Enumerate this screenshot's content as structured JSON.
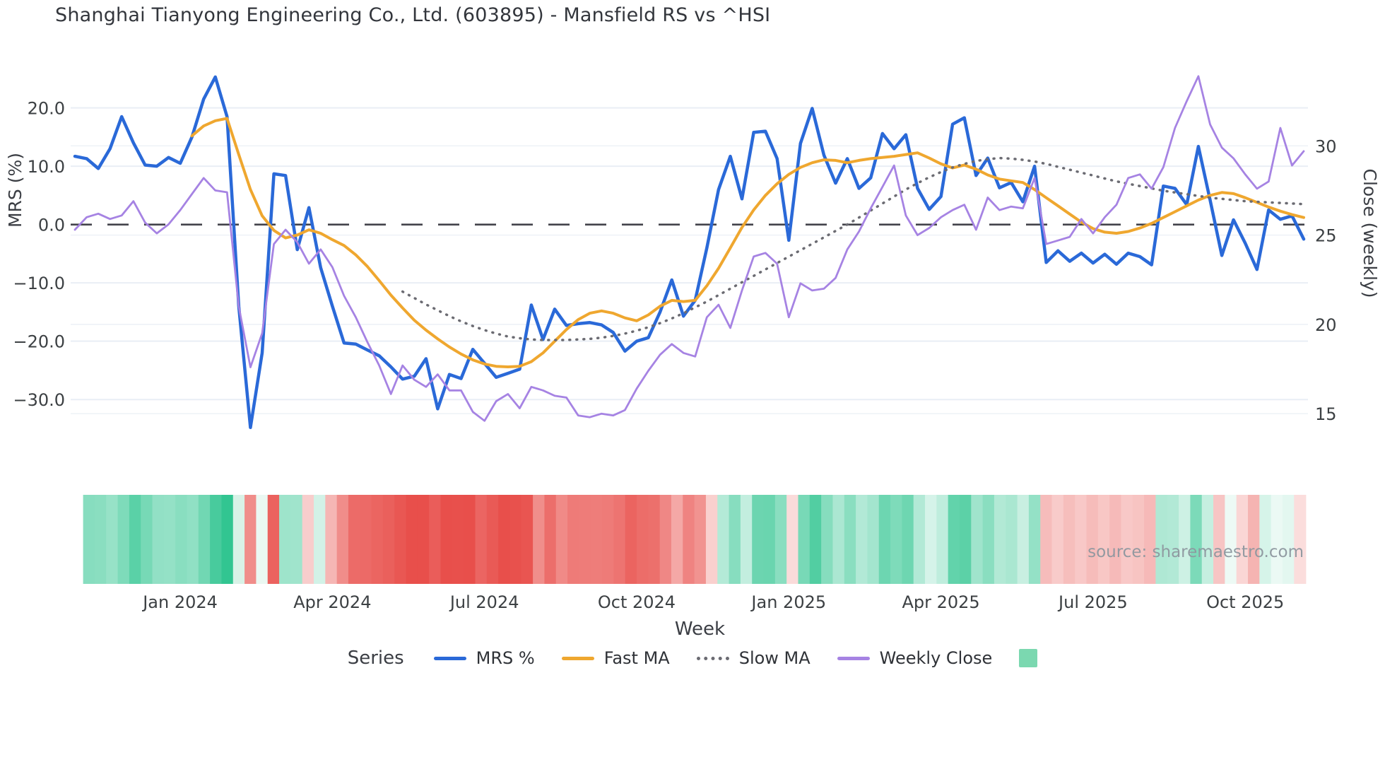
{
  "title": "Shanghai Tianyong Engineering Co., Ltd. (603895) - Mansfield RS vs ^HSI",
  "source_note": "source: sharemaestro.com",
  "legend": {
    "heading": "Series",
    "items": [
      {
        "label": "MRS %",
        "style": "line",
        "color": "#2a69d8"
      },
      {
        "label": "Fast MA",
        "style": "line",
        "color": "#efa72f"
      },
      {
        "label": "Slow MA",
        "style": "dotted",
        "color": "#6b6b72"
      },
      {
        "label": "Weekly Close",
        "style": "line",
        "color": "#a683e3"
      },
      {
        "label": "",
        "style": "square",
        "color": "#7bd8b0"
      }
    ]
  },
  "colors": {
    "grid": "#e9eef5",
    "zero_line": "#43434b",
    "tick_text": "#3c4043",
    "axis_title_text": "#3b3e44",
    "heat_pos_max": "#2ec48f",
    "heat_neg_max": "#e84f4b",
    "background": "#ffffff"
  },
  "chart_data": {
    "type": "line",
    "title": "Shanghai Tianyong Engineering Co., Ltd. (603895) - Mansfield RS vs ^HSI",
    "xlabel": "Week",
    "ylabel_left": "MRS (%)",
    "ylabel_right": "Close (weekly)",
    "n_weeks": 106,
    "x_tick_weeks": [
      9,
      22,
      35,
      48,
      61,
      74,
      87,
      100
    ],
    "x_tick_labels": [
      "Jan 2024",
      "Apr 2024",
      "Jul 2024",
      "Oct 2024",
      "Jan 2025",
      "Apr 2025",
      "Jul 2025",
      "Oct 2025"
    ],
    "left_axis": {
      "ticks": [
        20,
        10,
        0,
        -10,
        -20,
        -30
      ],
      "tick_labels": [
        "20.0",
        "10.0",
        "0.0",
        "−10.0",
        "−20.0",
        "−30.0"
      ],
      "range": [
        -36.4,
        28.8
      ],
      "zero_line": 0
    },
    "right_axis": {
      "ticks": [
        30,
        25,
        20,
        15
      ],
      "tick_labels": [
        "30",
        "25",
        "20",
        "15"
      ],
      "range": [
        13.7,
        35.0
      ]
    },
    "grid": true,
    "legend_position": "bottom",
    "series": [
      {
        "name": "MRS %",
        "axis": "left",
        "color": "#2a69d8",
        "width": 4.5,
        "dash": "solid",
        "values": [
          11.7,
          11.3,
          9.6,
          13.0,
          18.5,
          14.0,
          10.2,
          10.0,
          11.5,
          10.5,
          15.0,
          21.5,
          25.3,
          18.5,
          -14.0,
          -34.8,
          -22.0,
          8.7,
          8.4,
          -4.3,
          2.9,
          -7.4,
          -14.0,
          -20.3,
          -20.5,
          -21.5,
          -22.5,
          -24.4,
          -26.5,
          -26.0,
          -23.0,
          -31.6,
          -25.7,
          -26.4,
          -21.4,
          -23.8,
          -26.2,
          -25.5,
          -24.8,
          -13.8,
          -19.7,
          -14.5,
          -17.3,
          -17.0,
          -16.8,
          -17.2,
          -18.5,
          -21.7,
          -20.0,
          -19.4,
          -15.0,
          -9.5,
          -15.7,
          -13.0,
          -4.0,
          6.0,
          11.7,
          4.4,
          15.8,
          16.0,
          11.3,
          -2.7,
          13.9,
          19.9,
          11.9,
          7.1,
          11.3,
          6.2,
          8.0,
          15.6,
          13.0,
          15.4,
          6.2,
          2.6,
          4.8,
          17.2,
          18.3,
          8.4,
          11.4,
          6.3,
          7.2,
          3.9,
          10.0,
          -6.5,
          -4.5,
          -6.3,
          -4.9,
          -6.6,
          -5.1,
          -6.8,
          -4.9,
          -5.5,
          -6.9,
          6.6,
          6.2,
          3.4,
          13.4,
          4.2,
          -5.3,
          0.8,
          -3.2,
          -7.7,
          2.5,
          0.9,
          1.5,
          -2.5
        ]
      },
      {
        "name": "Fast MA",
        "axis": "left",
        "color": "#efa72f",
        "width": 4,
        "dash": "solid",
        "values": [
          null,
          null,
          null,
          null,
          null,
          null,
          null,
          null,
          null,
          null,
          15.2,
          16.9,
          17.8,
          18.2,
          12.0,
          6.0,
          1.5,
          -1.0,
          -2.3,
          -1.8,
          -0.9,
          -1.5,
          -2.6,
          -3.6,
          -5.2,
          -7.2,
          -9.6,
          -12.1,
          -14.3,
          -16.4,
          -18.1,
          -19.6,
          -21.0,
          -22.2,
          -23.2,
          -23.9,
          -24.3,
          -24.4,
          -24.3,
          -23.5,
          -22.0,
          -20.0,
          -18.0,
          -16.3,
          -15.2,
          -14.8,
          -15.2,
          -16.0,
          -16.5,
          -15.5,
          -14.0,
          -13.0,
          -13.2,
          -13.0,
          -10.5,
          -7.5,
          -4.0,
          -0.5,
          2.5,
          5.0,
          7.0,
          8.6,
          9.8,
          10.6,
          11.1,
          11.0,
          10.6,
          11.0,
          11.3,
          11.5,
          11.7,
          12.0,
          12.3,
          11.4,
          10.4,
          9.7,
          10.2,
          9.5,
          8.5,
          7.8,
          7.5,
          7.2,
          6.0,
          4.6,
          3.2,
          1.8,
          0.4,
          -0.7,
          -1.3,
          -1.5,
          -1.2,
          -0.6,
          0.2,
          1.2,
          2.2,
          3.2,
          4.2,
          5.0,
          5.5,
          5.3,
          4.6,
          3.8,
          3.0,
          2.3,
          1.7,
          1.2
        ]
      },
      {
        "name": "Slow MA",
        "axis": "left",
        "color": "#6b6b72",
        "width": 3.5,
        "dash": "dotted",
        "values": [
          null,
          null,
          null,
          null,
          null,
          null,
          null,
          null,
          null,
          null,
          null,
          null,
          null,
          null,
          null,
          null,
          null,
          null,
          null,
          null,
          null,
          null,
          null,
          null,
          null,
          null,
          null,
          null,
          -11.5,
          -12.6,
          -13.7,
          -14.7,
          -15.7,
          -16.6,
          -17.4,
          -18.1,
          -18.7,
          -19.2,
          -19.5,
          -19.7,
          -19.8,
          -19.8,
          -19.8,
          -19.7,
          -19.6,
          -19.4,
          -19.1,
          -18.7,
          -18.2,
          -17.6,
          -16.9,
          -16.1,
          -15.2,
          -14.2,
          -13.2,
          -12.1,
          -11.0,
          -9.9,
          -8.8,
          -7.7,
          -6.6,
          -5.5,
          -4.4,
          -3.3,
          -2.2,
          -1.1,
          0.0,
          1.2,
          2.4,
          3.6,
          4.8,
          6.0,
          7.1,
          8.1,
          9.0,
          9.8,
          10.4,
          10.9,
          11.2,
          11.4,
          11.3,
          11.1,
          10.8,
          10.4,
          9.9,
          9.4,
          8.9,
          8.4,
          7.9,
          7.4,
          7.0,
          6.6,
          6.2,
          5.8,
          5.5,
          5.2,
          4.9,
          4.6,
          4.4,
          4.2,
          4.0,
          3.9,
          3.8,
          3.7,
          3.6,
          3.5
        ]
      },
      {
        "name": "Weekly Close",
        "axis": "right",
        "color": "#a683e3",
        "width": 2.8,
        "dash": "solid",
        "values": [
          25.3,
          26.0,
          26.2,
          25.9,
          26.1,
          26.9,
          25.7,
          25.1,
          25.6,
          26.4,
          27.3,
          28.2,
          27.5,
          27.4,
          21.0,
          17.6,
          19.5,
          24.5,
          25.3,
          24.6,
          23.4,
          24.2,
          23.2,
          21.6,
          20.4,
          19.0,
          17.7,
          16.1,
          17.7,
          16.9,
          16.5,
          17.2,
          16.3,
          16.3,
          15.1,
          14.6,
          15.7,
          16.1,
          15.3,
          16.5,
          16.3,
          16.0,
          15.9,
          14.9,
          14.8,
          15.0,
          14.9,
          15.2,
          16.4,
          17.4,
          18.3,
          18.9,
          18.4,
          18.2,
          20.4,
          21.1,
          19.8,
          21.9,
          23.8,
          24.0,
          23.4,
          20.4,
          22.3,
          21.9,
          22.0,
          22.6,
          24.2,
          25.2,
          26.5,
          27.7,
          28.9,
          26.1,
          25.0,
          25.4,
          26.0,
          26.4,
          26.7,
          25.3,
          27.1,
          26.4,
          26.6,
          26.5,
          28.2,
          24.5,
          24.7,
          24.9,
          25.9,
          25.1,
          26.0,
          26.7,
          28.2,
          28.4,
          27.6,
          28.8,
          31.0,
          32.5,
          33.9,
          31.2,
          29.9,
          29.3,
          28.4,
          27.6,
          28.0,
          31.0,
          28.9,
          29.7
        ]
      }
    ],
    "heatmap_strip": {
      "description": "weekly cells colored by MRS % sign and magnitude (green positive, red negative)",
      "values_from_series": "MRS %",
      "clamp_abs": 26,
      "overrides": {
        "13": "#d9f2e7",
        "15": "#eaf8f2"
      }
    }
  }
}
